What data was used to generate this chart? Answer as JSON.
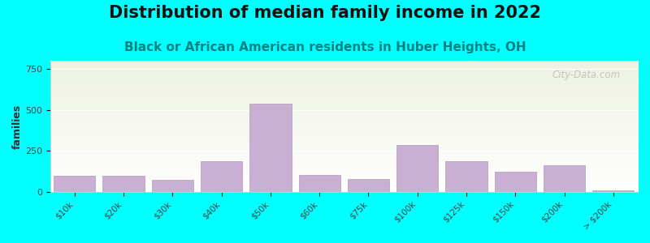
{
  "title": "Distribution of median family income in 2022",
  "subtitle": "Black or African American residents in Huber Heights, OH",
  "ylabel": "families",
  "background_outer": "#00FFFF",
  "background_inner_top": "#edf2e0",
  "background_inner_bottom": "#ffffff",
  "bar_color": "#c9afd4",
  "bar_edgecolor": "#b09abb",
  "categories": [
    "$10k",
    "$20k",
    "$30k",
    "$40k",
    "$50k",
    "$60k",
    "$75k",
    "$100k",
    "$125k",
    "$150k",
    "$200k",
    "> $200k"
  ],
  "values": [
    100,
    100,
    75,
    185,
    540,
    105,
    80,
    285,
    185,
    125,
    160,
    10
  ],
  "ylim": [
    0,
    800
  ],
  "yticks": [
    0,
    250,
    500,
    750
  ],
  "watermark": "City-Data.com",
  "title_fontsize": 15,
  "subtitle_fontsize": 11,
  "subtitle_color": "#008080",
  "title_color": "#111111"
}
